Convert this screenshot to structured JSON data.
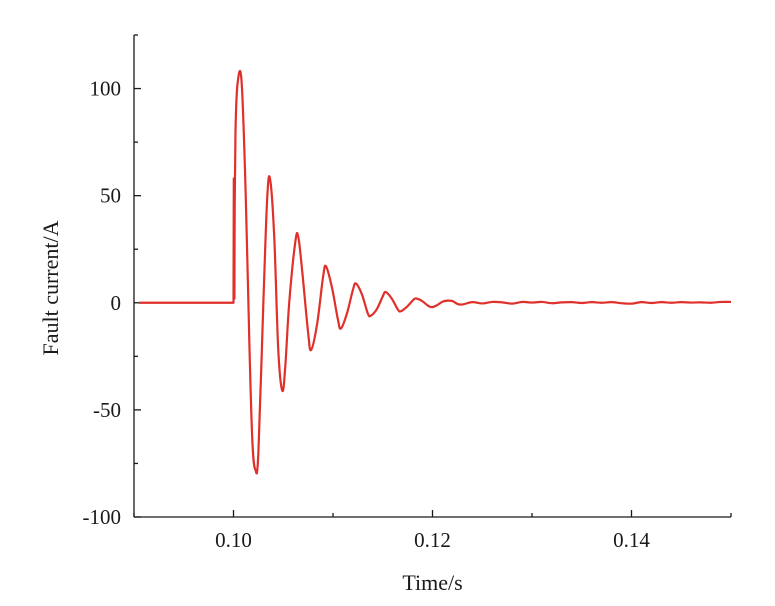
{
  "chart_data": {
    "type": "line",
    "title": "",
    "xlabel": "Time/s",
    "ylabel": "Fault current/A",
    "xlim": [
      0.09,
      0.15
    ],
    "ylim": [
      -100,
      125
    ],
    "x_ticks": [
      0.1,
      0.12,
      0.14
    ],
    "x_tick_labels": [
      "0.10",
      "0.12",
      "0.14"
    ],
    "y_ticks": [
      -100,
      -50,
      0,
      50,
      100
    ],
    "y_tick_labels": [
      "-100",
      "-50",
      "0",
      "50",
      "100"
    ],
    "grid": false,
    "legend": "none",
    "series": [
      {
        "color": "#e0302a",
        "x": [
          0.0905,
          0.0999,
          0.1,
          0.10003,
          0.10006,
          0.10009,
          0.10012,
          0.1002,
          0.1004,
          0.1008,
          0.1012,
          0.1016,
          0.1019,
          0.1022,
          0.1025,
          0.103,
          0.1034,
          0.1037,
          0.1041,
          0.1045,
          0.1049,
          0.1052,
          0.1056,
          0.1062,
          0.1065,
          0.1069,
          0.1075,
          0.1078,
          0.1084,
          0.109,
          0.1093,
          0.1099,
          0.1105,
          0.1108,
          0.1114,
          0.112,
          0.1123,
          0.1129,
          0.1135,
          0.1138,
          0.1144,
          0.115,
          0.1153,
          0.1159,
          0.1165,
          0.1168,
          0.1174,
          0.118,
          0.1183,
          0.1189,
          0.1196,
          0.12,
          0.1205,
          0.121,
          0.1215,
          0.122,
          0.1225,
          0.123,
          0.124,
          0.125,
          0.126,
          0.127,
          0.128,
          0.129,
          0.13,
          0.131,
          0.132,
          0.133,
          0.134,
          0.135,
          0.136,
          0.137,
          0.138,
          0.139,
          0.14,
          0.141,
          0.142,
          0.143,
          0.144,
          0.145,
          0.146,
          0.147,
          0.148,
          0.149,
          0.15
        ],
        "values": [
          0,
          0,
          0,
          58,
          58,
          2,
          45,
          80,
          102,
          104,
          55,
          -20,
          -65,
          -78,
          -70,
          0,
          50,
          57,
          30,
          -22,
          -41,
          -30,
          0,
          28,
          31,
          15,
          -14,
          -22,
          -10,
          12,
          17,
          7,
          -8,
          -12,
          -5,
          6,
          9,
          4,
          -5,
          -6,
          -3,
          3,
          5,
          2,
          -3,
          -4,
          -2,
          1,
          2,
          1,
          -1.5,
          -2,
          -1,
          0.5,
          1,
          0.8,
          -0.5,
          -0.8,
          0.3,
          -0.3,
          0.4,
          0.2,
          -0.4,
          0.4,
          0.1,
          0.4,
          -0.2,
          0.2,
          0.3,
          -0.1,
          0.3,
          0.0,
          0.3,
          -0.2,
          -0.4,
          0.3,
          -0.1,
          0.3,
          0.0,
          0.3,
          0.1,
          0.2,
          0.0,
          0.4,
          0.4
        ]
      }
    ]
  }
}
